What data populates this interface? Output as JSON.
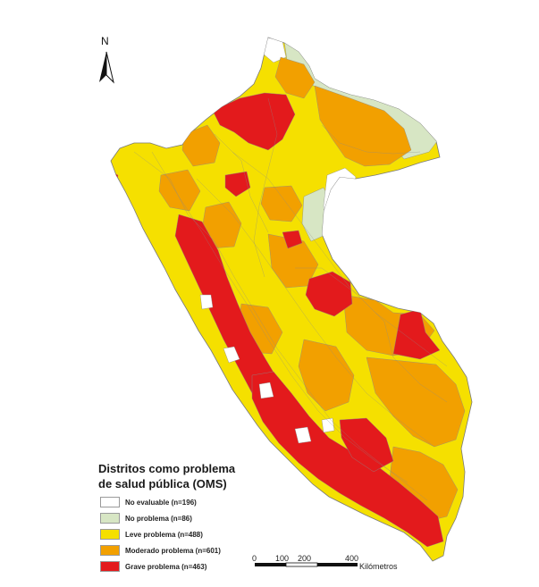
{
  "north": "N",
  "legend": {
    "title_line1": "Distritos como problema",
    "title_line2": "de salud pública (OMS)",
    "items": [
      {
        "label": "No evaluable (n=196)",
        "color": "#ffffff"
      },
      {
        "label": "No problema (n=86)",
        "color": "#d7e6c4"
      },
      {
        "label": "Leve problema (n=488)",
        "color": "#f5e000"
      },
      {
        "label": "Moderado problema (n=601)",
        "color": "#f2a000"
      },
      {
        "label": "Grave problema (n=463)",
        "color": "#e31a1c"
      }
    ]
  },
  "scale": {
    "ticks": [
      "0",
      "100",
      "200",
      "400"
    ],
    "unit": "Kilómetros"
  }
}
